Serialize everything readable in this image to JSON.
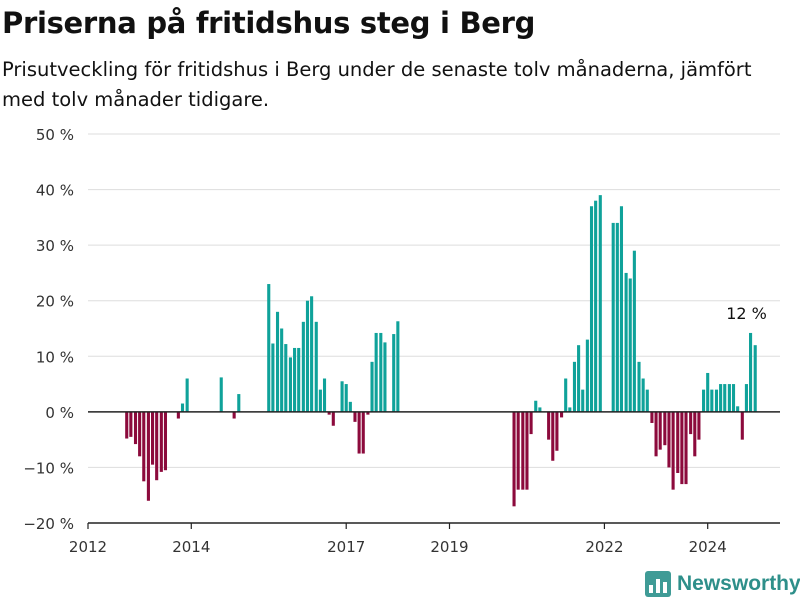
{
  "header": {
    "title": "Priserna på fritidshus steg i Berg",
    "subtitle": "Prisutveckling för fritidshus i Berg under de senaste tolv månaderna, jämfört med tolv månader tidigare."
  },
  "brand": {
    "name": "Newsworthy",
    "icon": "bar-chart-logo-icon",
    "color": "#2e8f8a"
  },
  "chart_data": {
    "type": "bar",
    "y_ticks": [
      "50 %",
      "40 %",
      "30 %",
      "20 %",
      "10 %",
      "0 %",
      "−10 %",
      "−20 %"
    ],
    "ylim": [
      -20,
      50
    ],
    "x_ticks": [
      "2012",
      "2014",
      "2017",
      "2019",
      "2022",
      "2024"
    ],
    "x_tick_values": [
      2012.0,
      2014.0,
      2017.0,
      2019.0,
      2022.0,
      2024.0
    ],
    "xlim": [
      2012.0,
      2025.4
    ],
    "colors": {
      "positive": "#0fa29a",
      "negative": "#8c0a3c"
    },
    "annotation": {
      "text": "12 %",
      "x": 2024.83,
      "y": 12
    },
    "grid": true,
    "series": [
      {
        "points": [
          {
            "x": 2012.75,
            "y": -4.8
          },
          {
            "x": 2012.83,
            "y": -4.5
          },
          {
            "x": 2012.92,
            "y": -5.8
          },
          {
            "x": 2013.0,
            "y": -8.0
          },
          {
            "x": 2013.08,
            "y": -12.5
          },
          {
            "x": 2013.17,
            "y": -16.0
          },
          {
            "x": 2013.25,
            "y": -9.5
          },
          {
            "x": 2013.33,
            "y": -12.3
          },
          {
            "x": 2013.42,
            "y": -10.8
          },
          {
            "x": 2013.5,
            "y": -10.5
          },
          {
            "x": 2013.75,
            "y": -1.2
          },
          {
            "x": 2013.83,
            "y": 1.5
          },
          {
            "x": 2013.92,
            "y": 6.0
          },
          {
            "x": 2014.58,
            "y": 6.2
          },
          {
            "x": 2014.83,
            "y": -1.2
          },
          {
            "x": 2014.92,
            "y": 3.2
          },
          {
            "x": 2015.5,
            "y": 23.0
          },
          {
            "x": 2015.58,
            "y": 12.3
          },
          {
            "x": 2015.67,
            "y": 18.0
          },
          {
            "x": 2015.75,
            "y": 15.0
          },
          {
            "x": 2015.83,
            "y": 12.2
          },
          {
            "x": 2015.92,
            "y": 9.8
          },
          {
            "x": 2016.0,
            "y": 11.5
          },
          {
            "x": 2016.08,
            "y": 11.5
          },
          {
            "x": 2016.17,
            "y": 16.2
          },
          {
            "x": 2016.25,
            "y": 20.0
          },
          {
            "x": 2016.33,
            "y": 20.8
          },
          {
            "x": 2016.42,
            "y": 16.2
          },
          {
            "x": 2016.5,
            "y": 4.0
          },
          {
            "x": 2016.58,
            "y": 6.0
          },
          {
            "x": 2016.67,
            "y": -0.5
          },
          {
            "x": 2016.75,
            "y": -2.5
          },
          {
            "x": 2016.92,
            "y": 5.5
          },
          {
            "x": 2017.0,
            "y": 5.0
          },
          {
            "x": 2017.08,
            "y": 1.8
          },
          {
            "x": 2017.17,
            "y": -1.8
          },
          {
            "x": 2017.25,
            "y": -7.5
          },
          {
            "x": 2017.33,
            "y": -7.5
          },
          {
            "x": 2017.42,
            "y": -0.5
          },
          {
            "x": 2017.5,
            "y": 9.0
          },
          {
            "x": 2017.58,
            "y": 14.2
          },
          {
            "x": 2017.67,
            "y": 14.2
          },
          {
            "x": 2017.75,
            "y": 12.5
          },
          {
            "x": 2017.92,
            "y": 14.0
          },
          {
            "x": 2018.0,
            "y": 16.3
          },
          {
            "x": 2020.25,
            "y": -17.0
          },
          {
            "x": 2020.33,
            "y": -14.0
          },
          {
            "x": 2020.42,
            "y": -14.0
          },
          {
            "x": 2020.5,
            "y": -14.0
          },
          {
            "x": 2020.58,
            "y": -4.0
          },
          {
            "x": 2020.67,
            "y": 2.0
          },
          {
            "x": 2020.75,
            "y": 0.8
          },
          {
            "x": 2020.92,
            "y": -5.0
          },
          {
            "x": 2021.0,
            "y": -8.8
          },
          {
            "x": 2021.08,
            "y": -7.0
          },
          {
            "x": 2021.17,
            "y": -1.0
          },
          {
            "x": 2021.25,
            "y": 6.0
          },
          {
            "x": 2021.33,
            "y": 0.8
          },
          {
            "x": 2021.42,
            "y": 9.0
          },
          {
            "x": 2021.5,
            "y": 12.0
          },
          {
            "x": 2021.58,
            "y": 4.0
          },
          {
            "x": 2021.67,
            "y": 13.0
          },
          {
            "x": 2021.75,
            "y": 37.0
          },
          {
            "x": 2021.83,
            "y": 38.0
          },
          {
            "x": 2021.92,
            "y": 39.0
          },
          {
            "x": 2022.17,
            "y": 34.0
          },
          {
            "x": 2022.25,
            "y": 34.0
          },
          {
            "x": 2022.33,
            "y": 37.0
          },
          {
            "x": 2022.42,
            "y": 25.0
          },
          {
            "x": 2022.5,
            "y": 24.0
          },
          {
            "x": 2022.58,
            "y": 29.0
          },
          {
            "x": 2022.67,
            "y": 9.0
          },
          {
            "x": 2022.75,
            "y": 6.0
          },
          {
            "x": 2022.83,
            "y": 4.0
          },
          {
            "x": 2022.92,
            "y": -2.0
          },
          {
            "x": 2023.0,
            "y": -8.0
          },
          {
            "x": 2023.08,
            "y": -6.8
          },
          {
            "x": 2023.17,
            "y": -6.0
          },
          {
            "x": 2023.25,
            "y": -10.0
          },
          {
            "x": 2023.33,
            "y": -14.0
          },
          {
            "x": 2023.42,
            "y": -11.0
          },
          {
            "x": 2023.5,
            "y": -13.0
          },
          {
            "x": 2023.58,
            "y": -13.0
          },
          {
            "x": 2023.67,
            "y": -4.0
          },
          {
            "x": 2023.75,
            "y": -8.0
          },
          {
            "x": 2023.83,
            "y": -5.0
          },
          {
            "x": 2023.92,
            "y": 4.0
          },
          {
            "x": 2024.0,
            "y": 7.0
          },
          {
            "x": 2024.08,
            "y": 4.0
          },
          {
            "x": 2024.17,
            "y": 4.0
          },
          {
            "x": 2024.25,
            "y": 5.0
          },
          {
            "x": 2024.33,
            "y": 5.0
          },
          {
            "x": 2024.42,
            "y": 5.0
          },
          {
            "x": 2024.5,
            "y": 5.0
          },
          {
            "x": 2024.58,
            "y": 1.0
          },
          {
            "x": 2024.67,
            "y": -5.0
          },
          {
            "x": 2024.75,
            "y": 5.0
          },
          {
            "x": 2024.83,
            "y": 14.2
          },
          {
            "x": 2024.92,
            "y": 12.0
          }
        ]
      }
    ]
  }
}
